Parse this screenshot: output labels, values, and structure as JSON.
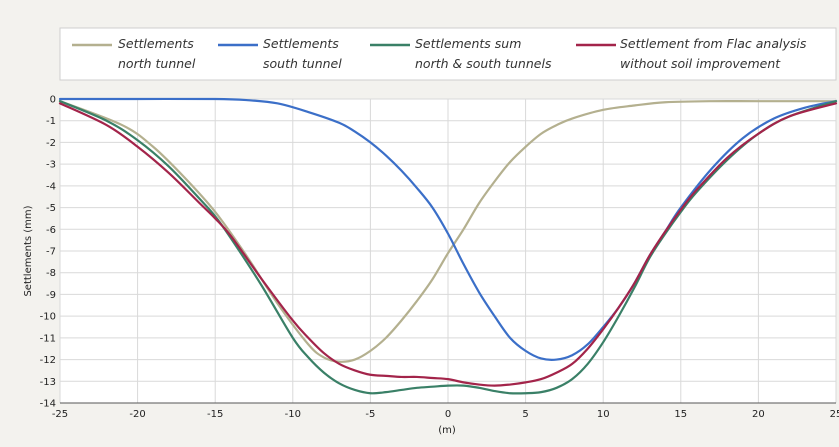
{
  "chart_data": {
    "type": "line",
    "title": "",
    "xlabel": "(m)",
    "ylabel": "Settlements (mm)",
    "xlim": [
      -25,
      25
    ],
    "ylim": [
      -14,
      0
    ],
    "x_ticks": [
      -25,
      -20,
      -15,
      -10,
      -5,
      0,
      5,
      10,
      15,
      20,
      25
    ],
    "y_ticks": [
      0,
      -1,
      -2,
      -3,
      -4,
      -5,
      -6,
      -7,
      -8,
      -9,
      -10,
      -11,
      -12,
      -13,
      -14
    ],
    "grid": true,
    "legend_position": "top",
    "series": [
      {
        "name": "Settlements north tunnel",
        "legend_lines": [
          "Settlements",
          "north tunnel"
        ],
        "color": "#b4b08f",
        "x": [
          -25,
          -21,
          -19,
          -17,
          -15,
          -13,
          -11,
          -9,
          -8,
          -7,
          -6,
          -5,
          -4,
          -3,
          -2,
          -1,
          0,
          1,
          2,
          3,
          4,
          5,
          6,
          7,
          8,
          10,
          12,
          14,
          17,
          20,
          25
        ],
        "y": [
          -0.1,
          -1.2,
          -2.2,
          -3.6,
          -5.2,
          -7.2,
          -9.4,
          -11.3,
          -11.9,
          -12.1,
          -12.0,
          -11.6,
          -11.0,
          -10.2,
          -9.3,
          -8.3,
          -7.1,
          -6.0,
          -4.8,
          -3.8,
          -2.9,
          -2.2,
          -1.6,
          -1.2,
          -0.9,
          -0.5,
          -0.3,
          -0.15,
          -0.1,
          -0.1,
          -0.1
        ]
      },
      {
        "name": "Settlements south tunnel",
        "legend_lines": [
          "Settlements",
          "south tunnel"
        ],
        "color": "#3b6fc8",
        "x": [
          -25,
          -20,
          -15,
          -13,
          -11,
          -9,
          -7,
          -6,
          -5,
          -4,
          -3,
          -2,
          -1,
          0,
          1,
          2,
          3,
          4,
          5,
          6,
          7,
          8,
          9,
          10,
          11,
          12,
          13,
          14,
          15,
          17,
          19,
          21,
          23,
          25
        ],
        "y": [
          0,
          0,
          0,
          -0.05,
          -0.2,
          -0.6,
          -1.1,
          -1.5,
          -2.0,
          -2.6,
          -3.3,
          -4.1,
          -5.0,
          -6.2,
          -7.6,
          -8.9,
          -10.0,
          -11.0,
          -11.6,
          -11.95,
          -12.0,
          -11.8,
          -11.3,
          -10.5,
          -9.6,
          -8.5,
          -7.2,
          -6.1,
          -5.0,
          -3.2,
          -1.8,
          -0.9,
          -0.4,
          -0.1
        ]
      },
      {
        "name": "Settlements sum north & south tunnels",
        "legend_lines": [
          "Settlements sum",
          "north & south tunnels"
        ],
        "color": "#3a8067",
        "x": [
          -25,
          -22,
          -20,
          -18,
          -16,
          -15,
          -14,
          -12,
          -10,
          -9,
          -8,
          -7,
          -6,
          -5,
          -4,
          -3,
          -2,
          -1,
          0,
          1,
          2,
          3,
          4,
          5,
          6,
          7,
          8,
          9,
          10,
          11,
          12,
          13,
          14,
          15,
          16,
          18,
          20,
          22,
          25
        ],
        "y": [
          -0.1,
          -1.0,
          -1.9,
          -3.1,
          -4.6,
          -5.4,
          -6.4,
          -8.6,
          -11.0,
          -11.9,
          -12.6,
          -13.1,
          -13.4,
          -13.55,
          -13.5,
          -13.4,
          -13.3,
          -13.25,
          -13.2,
          -13.2,
          -13.3,
          -13.45,
          -13.55,
          -13.55,
          -13.5,
          -13.3,
          -12.9,
          -12.2,
          -11.2,
          -10.0,
          -8.7,
          -7.3,
          -6.2,
          -5.2,
          -4.3,
          -2.8,
          -1.6,
          -0.8,
          -0.1
        ]
      },
      {
        "name": "Settlement from Flac analysis without soil improvement",
        "legend_lines": [
          "Settlement from Flac analysis",
          "without soil improvement"
        ],
        "color": "#a3244a",
        "x": [
          -25,
          -22,
          -20,
          -18,
          -16,
          -15,
          -14,
          -12,
          -10,
          -9,
          -8,
          -7,
          -6,
          -5,
          -4,
          -3,
          -2,
          -1,
          0,
          1,
          2,
          3,
          4,
          5,
          6,
          7,
          8,
          9,
          10,
          11,
          12,
          13,
          14,
          15,
          16,
          18,
          20,
          22,
          25
        ],
        "y": [
          -0.2,
          -1.2,
          -2.2,
          -3.4,
          -4.8,
          -5.5,
          -6.3,
          -8.3,
          -10.2,
          -11.0,
          -11.7,
          -12.2,
          -12.5,
          -12.7,
          -12.75,
          -12.8,
          -12.8,
          -12.85,
          -12.9,
          -13.05,
          -13.15,
          -13.2,
          -13.15,
          -13.05,
          -12.9,
          -12.6,
          -12.2,
          -11.5,
          -10.6,
          -9.6,
          -8.5,
          -7.2,
          -6.1,
          -5.1,
          -4.2,
          -2.7,
          -1.6,
          -0.8,
          -0.2
        ]
      }
    ]
  }
}
